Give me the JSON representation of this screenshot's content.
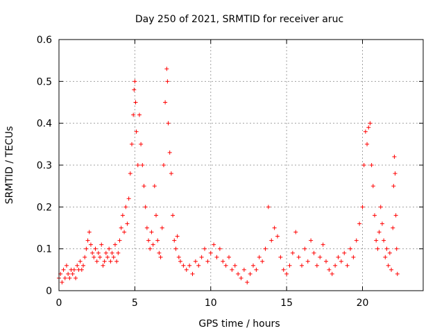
{
  "chart_data": {
    "type": "scatter",
    "title": "Day 250 of 2021, SRMTID for receiver aruc",
    "xlabel": "GPS time / hours",
    "ylabel": "SRMTID / TECUs",
    "xlim": [
      0,
      24
    ],
    "ylim": [
      0,
      0.6
    ],
    "xticks": [
      0,
      5,
      10,
      15,
      20
    ],
    "xtick_labels": [
      "0",
      "5",
      "10",
      "15",
      "20"
    ],
    "yticks": [
      0,
      0.1,
      0.2,
      0.3,
      0.4,
      0.5,
      0.6
    ],
    "ytick_labels": [
      "0",
      "0.1",
      "0.2",
      "0.3",
      "0.4",
      "0.5",
      "0.6"
    ],
    "grid": true,
    "marker": "+",
    "series": [
      {
        "name": "SRMTID",
        "color": "#ff0000",
        "points": [
          [
            0.0,
            0.03
          ],
          [
            0.1,
            0.04
          ],
          [
            0.2,
            0.02
          ],
          [
            0.3,
            0.05
          ],
          [
            0.4,
            0.03
          ],
          [
            0.5,
            0.06
          ],
          [
            0.6,
            0.04
          ],
          [
            0.7,
            0.03
          ],
          [
            0.8,
            0.05
          ],
          [
            0.9,
            0.04
          ],
          [
            1.0,
            0.05
          ],
          [
            1.1,
            0.03
          ],
          [
            1.2,
            0.06
          ],
          [
            1.3,
            0.05
          ],
          [
            1.4,
            0.07
          ],
          [
            1.5,
            0.05
          ],
          [
            1.6,
            0.06
          ],
          [
            1.7,
            0.08
          ],
          [
            1.8,
            0.1
          ],
          [
            1.9,
            0.12
          ],
          [
            2.0,
            0.14
          ],
          [
            2.1,
            0.11
          ],
          [
            2.2,
            0.09
          ],
          [
            2.3,
            0.08
          ],
          [
            2.4,
            0.1
          ],
          [
            2.5,
            0.07
          ],
          [
            2.6,
            0.09
          ],
          [
            2.7,
            0.08
          ],
          [
            2.8,
            0.11
          ],
          [
            2.9,
            0.06
          ],
          [
            3.0,
            0.07
          ],
          [
            3.1,
            0.09
          ],
          [
            3.2,
            0.08
          ],
          [
            3.3,
            0.1
          ],
          [
            3.4,
            0.07
          ],
          [
            3.5,
            0.09
          ],
          [
            3.6,
            0.08
          ],
          [
            3.7,
            0.11
          ],
          [
            3.8,
            0.07
          ],
          [
            3.9,
            0.09
          ],
          [
            4.0,
            0.12
          ],
          [
            4.1,
            0.15
          ],
          [
            4.2,
            0.18
          ],
          [
            4.3,
            0.14
          ],
          [
            4.4,
            0.2
          ],
          [
            4.5,
            0.16
          ],
          [
            4.6,
            0.22
          ],
          [
            4.7,
            0.28
          ],
          [
            4.8,
            0.35
          ],
          [
            4.9,
            0.42
          ],
          [
            4.95,
            0.48
          ],
          [
            5.0,
            0.5
          ],
          [
            5.05,
            0.45
          ],
          [
            5.1,
            0.38
          ],
          [
            5.2,
            0.3
          ],
          [
            5.3,
            0.42
          ],
          [
            5.4,
            0.35
          ],
          [
            5.5,
            0.3
          ],
          [
            5.6,
            0.25
          ],
          [
            5.7,
            0.2
          ],
          [
            5.8,
            0.15
          ],
          [
            5.9,
            0.12
          ],
          [
            6.0,
            0.1
          ],
          [
            6.1,
            0.14
          ],
          [
            6.2,
            0.11
          ],
          [
            6.3,
            0.25
          ],
          [
            6.4,
            0.18
          ],
          [
            6.5,
            0.12
          ],
          [
            6.6,
            0.09
          ],
          [
            6.7,
            0.08
          ],
          [
            6.8,
            0.15
          ],
          [
            6.9,
            0.3
          ],
          [
            7.0,
            0.45
          ],
          [
            7.1,
            0.53
          ],
          [
            7.15,
            0.5
          ],
          [
            7.2,
            0.4
          ],
          [
            7.3,
            0.33
          ],
          [
            7.4,
            0.28
          ],
          [
            7.5,
            0.18
          ],
          [
            7.6,
            0.12
          ],
          [
            7.7,
            0.1
          ],
          [
            7.8,
            0.13
          ],
          [
            7.9,
            0.08
          ],
          [
            8.0,
            0.07
          ],
          [
            8.2,
            0.06
          ],
          [
            8.4,
            0.05
          ],
          [
            8.6,
            0.06
          ],
          [
            8.8,
            0.04
          ],
          [
            9.0,
            0.07
          ],
          [
            9.2,
            0.06
          ],
          [
            9.4,
            0.08
          ],
          [
            9.6,
            0.1
          ],
          [
            9.8,
            0.07
          ],
          [
            10.0,
            0.09
          ],
          [
            10.2,
            0.11
          ],
          [
            10.4,
            0.08
          ],
          [
            10.6,
            0.1
          ],
          [
            10.8,
            0.07
          ],
          [
            11.0,
            0.06
          ],
          [
            11.2,
            0.08
          ],
          [
            11.4,
            0.05
          ],
          [
            11.6,
            0.06
          ],
          [
            11.8,
            0.04
          ],
          [
            12.0,
            0.03
          ],
          [
            12.2,
            0.05
          ],
          [
            12.4,
            0.02
          ],
          [
            12.6,
            0.04
          ],
          [
            12.8,
            0.06
          ],
          [
            13.0,
            0.05
          ],
          [
            13.2,
            0.08
          ],
          [
            13.4,
            0.07
          ],
          [
            13.6,
            0.1
          ],
          [
            13.8,
            0.2
          ],
          [
            14.0,
            0.12
          ],
          [
            14.2,
            0.15
          ],
          [
            14.4,
            0.13
          ],
          [
            14.6,
            0.08
          ],
          [
            14.8,
            0.05
          ],
          [
            15.0,
            0.04
          ],
          [
            15.2,
            0.06
          ],
          [
            15.4,
            0.09
          ],
          [
            15.6,
            0.14
          ],
          [
            15.8,
            0.08
          ],
          [
            16.0,
            0.06
          ],
          [
            16.2,
            0.1
          ],
          [
            16.4,
            0.07
          ],
          [
            16.6,
            0.12
          ],
          [
            16.8,
            0.09
          ],
          [
            17.0,
            0.06
          ],
          [
            17.2,
            0.08
          ],
          [
            17.4,
            0.11
          ],
          [
            17.6,
            0.07
          ],
          [
            17.8,
            0.05
          ],
          [
            18.0,
            0.04
          ],
          [
            18.2,
            0.06
          ],
          [
            18.4,
            0.08
          ],
          [
            18.6,
            0.07
          ],
          [
            18.8,
            0.09
          ],
          [
            19.0,
            0.06
          ],
          [
            19.2,
            0.1
          ],
          [
            19.4,
            0.08
          ],
          [
            19.6,
            0.12
          ],
          [
            19.8,
            0.16
          ],
          [
            20.0,
            0.2
          ],
          [
            20.1,
            0.3
          ],
          [
            20.2,
            0.38
          ],
          [
            20.3,
            0.35
          ],
          [
            20.4,
            0.39
          ],
          [
            20.5,
            0.4
          ],
          [
            20.6,
            0.3
          ],
          [
            20.7,
            0.25
          ],
          [
            20.8,
            0.18
          ],
          [
            20.9,
            0.12
          ],
          [
            21.0,
            0.1
          ],
          [
            21.1,
            0.14
          ],
          [
            21.2,
            0.2
          ],
          [
            21.3,
            0.16
          ],
          [
            21.4,
            0.12
          ],
          [
            21.5,
            0.08
          ],
          [
            21.6,
            0.1
          ],
          [
            21.7,
            0.06
          ],
          [
            21.8,
            0.09
          ],
          [
            21.9,
            0.05
          ],
          [
            22.0,
            0.15
          ],
          [
            22.05,
            0.25
          ],
          [
            22.1,
            0.32
          ],
          [
            22.15,
            0.28
          ],
          [
            22.2,
            0.18
          ],
          [
            22.25,
            0.1
          ],
          [
            22.3,
            0.04
          ]
        ]
      }
    ]
  }
}
